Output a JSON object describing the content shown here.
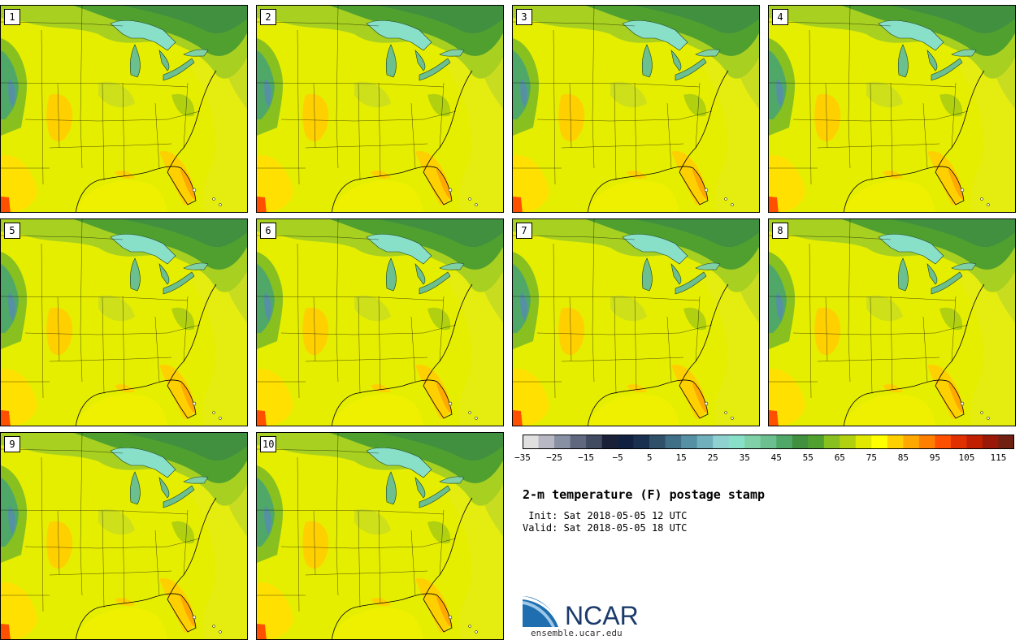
{
  "panels": [
    {
      "label": "1"
    },
    {
      "label": "2"
    },
    {
      "label": "3"
    },
    {
      "label": "4"
    },
    {
      "label": "5"
    },
    {
      "label": "6"
    },
    {
      "label": "7"
    },
    {
      "label": "8"
    },
    {
      "label": "9"
    },
    {
      "label": "10"
    }
  ],
  "legend": {
    "colors": [
      "#e0e0e0",
      "#b8b8c4",
      "#8890a4",
      "#606880",
      "#404a60",
      "#1a2038",
      "#102040",
      "#1a3050",
      "#30506a",
      "#407088",
      "#5590a4",
      "#6fb0bc",
      "#8fd0d0",
      "#88e0c8",
      "#80d0a8",
      "#6cc090",
      "#50a868",
      "#409040",
      "#50a030",
      "#88c020",
      "#b0d010",
      "#e0e800",
      "#ffff00",
      "#ffd000",
      "#ffa800",
      "#ff8000",
      "#ff5000",
      "#e03000",
      "#c02000",
      "#9a1808",
      "#702010"
    ],
    "ticks": [
      "−35",
      "−25",
      "−15",
      "−5",
      "5",
      "15",
      "25",
      "35",
      "45",
      "55",
      "65",
      "75",
      "85",
      "95",
      "105",
      "115"
    ]
  },
  "title": "2-m temperature (F) postage stamp",
  "init_line": " Init: Sat 2018-05-05 12 UTC",
  "valid_line": "Valid: Sat 2018-05-05 18 UTC",
  "logo": {
    "text": "NCAR",
    "url": "ensemble.ucar.edu"
  }
}
